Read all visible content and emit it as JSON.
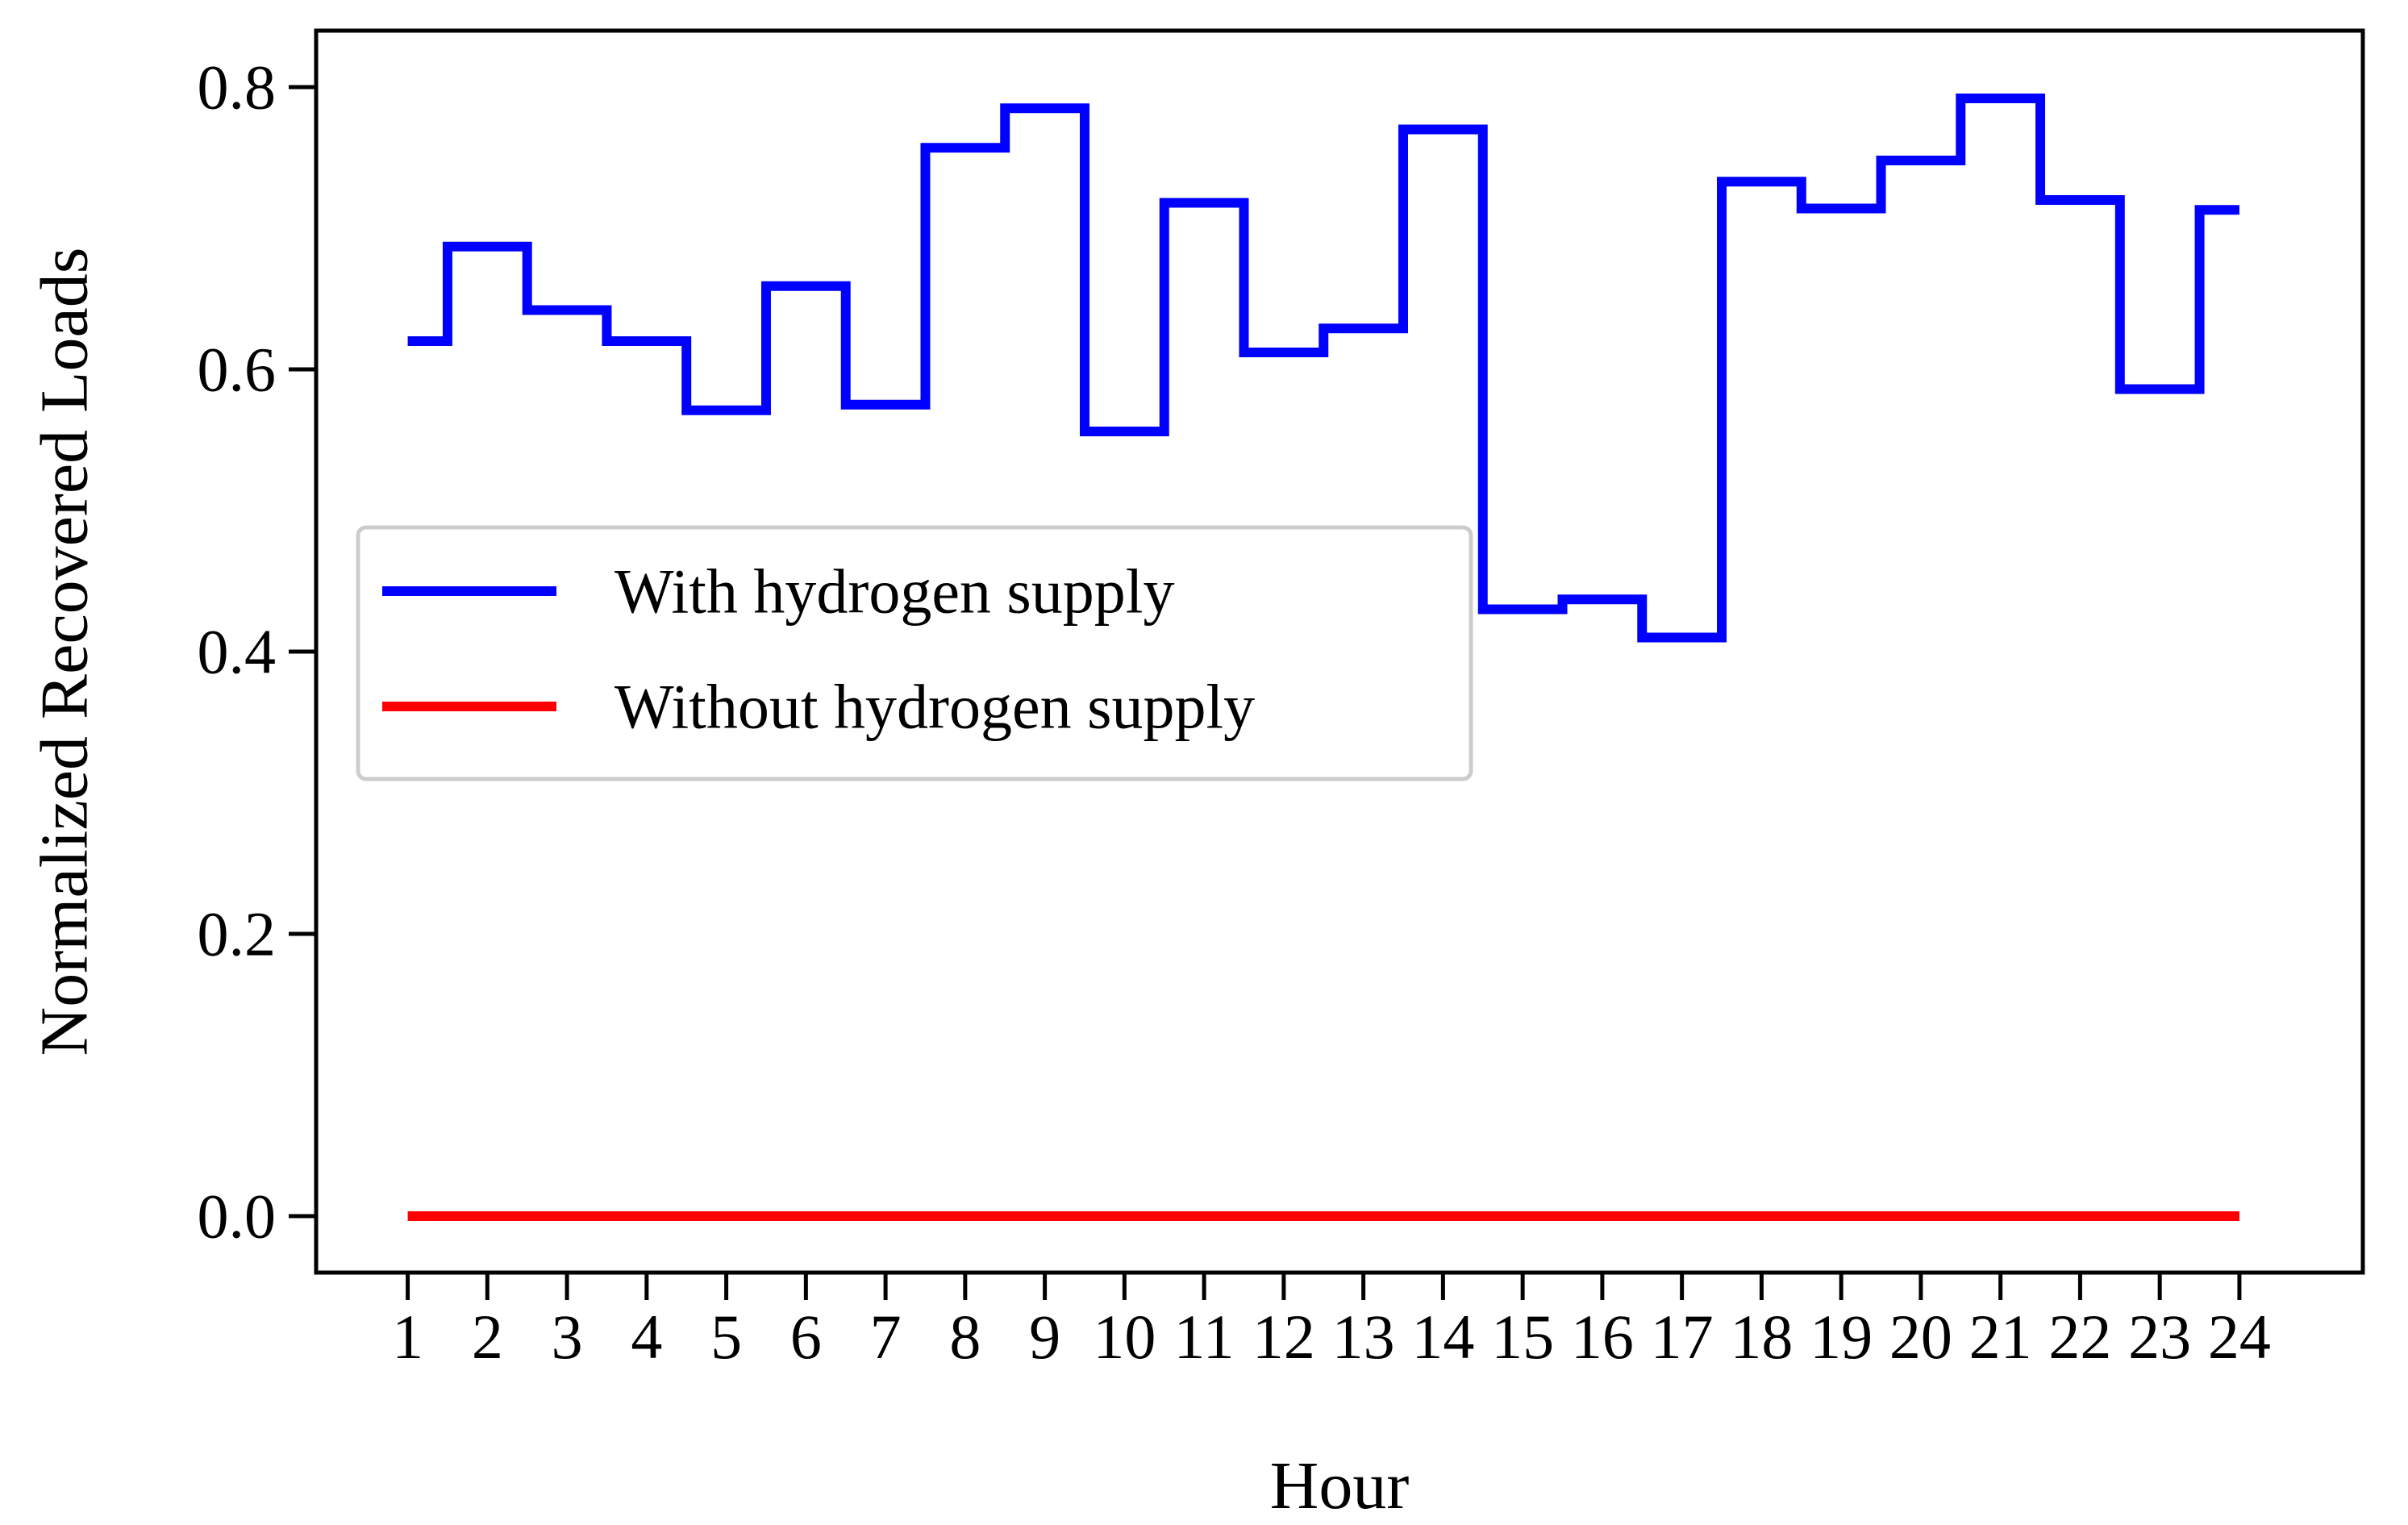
{
  "chart_data": {
    "type": "line",
    "step": "mid",
    "title": "",
    "xlabel": "Hour",
    "ylabel": "Normalized Recovered Loads",
    "x": [
      1,
      2,
      3,
      4,
      5,
      6,
      7,
      8,
      9,
      10,
      11,
      12,
      13,
      14,
      15,
      16,
      17,
      18,
      19,
      20,
      21,
      22,
      23,
      24
    ],
    "x_tick_labels": [
      "1",
      "2",
      "3",
      "4",
      "5",
      "6",
      "7",
      "8",
      "9",
      "10",
      "11",
      "12",
      "13",
      "14",
      "15",
      "16",
      "17",
      "18",
      "19",
      "20",
      "21",
      "22",
      "23",
      "24"
    ],
    "y_tick_labels": [
      "0.0",
      "0.2",
      "0.4",
      "0.6",
      "0.8"
    ],
    "y_ticks": [
      0.0,
      0.2,
      0.4,
      0.6,
      0.8
    ],
    "xlim": [
      -0.15,
      25.55
    ],
    "ylim": [
      -0.04,
      0.84
    ],
    "grid": false,
    "legend_position": "center-left",
    "series": [
      {
        "name": "With hydrogen supply",
        "color": "#0000ff",
        "values": [
          0.62,
          0.687,
          0.642,
          0.62,
          0.571,
          0.659,
          0.575,
          0.757,
          0.785,
          0.556,
          0.718,
          0.612,
          0.629,
          0.77,
          0.43,
          0.437,
          0.41,
          0.733,
          0.714,
          0.748,
          0.792,
          0.72,
          0.586,
          0.713
        ]
      },
      {
        "name": "Without hydrogen supply",
        "color": "#ff0000",
        "values": [
          0,
          0,
          0,
          0,
          0,
          0,
          0,
          0,
          0,
          0,
          0,
          0,
          0,
          0,
          0,
          0,
          0,
          0,
          0,
          0,
          0,
          0,
          0,
          0
        ]
      }
    ]
  }
}
